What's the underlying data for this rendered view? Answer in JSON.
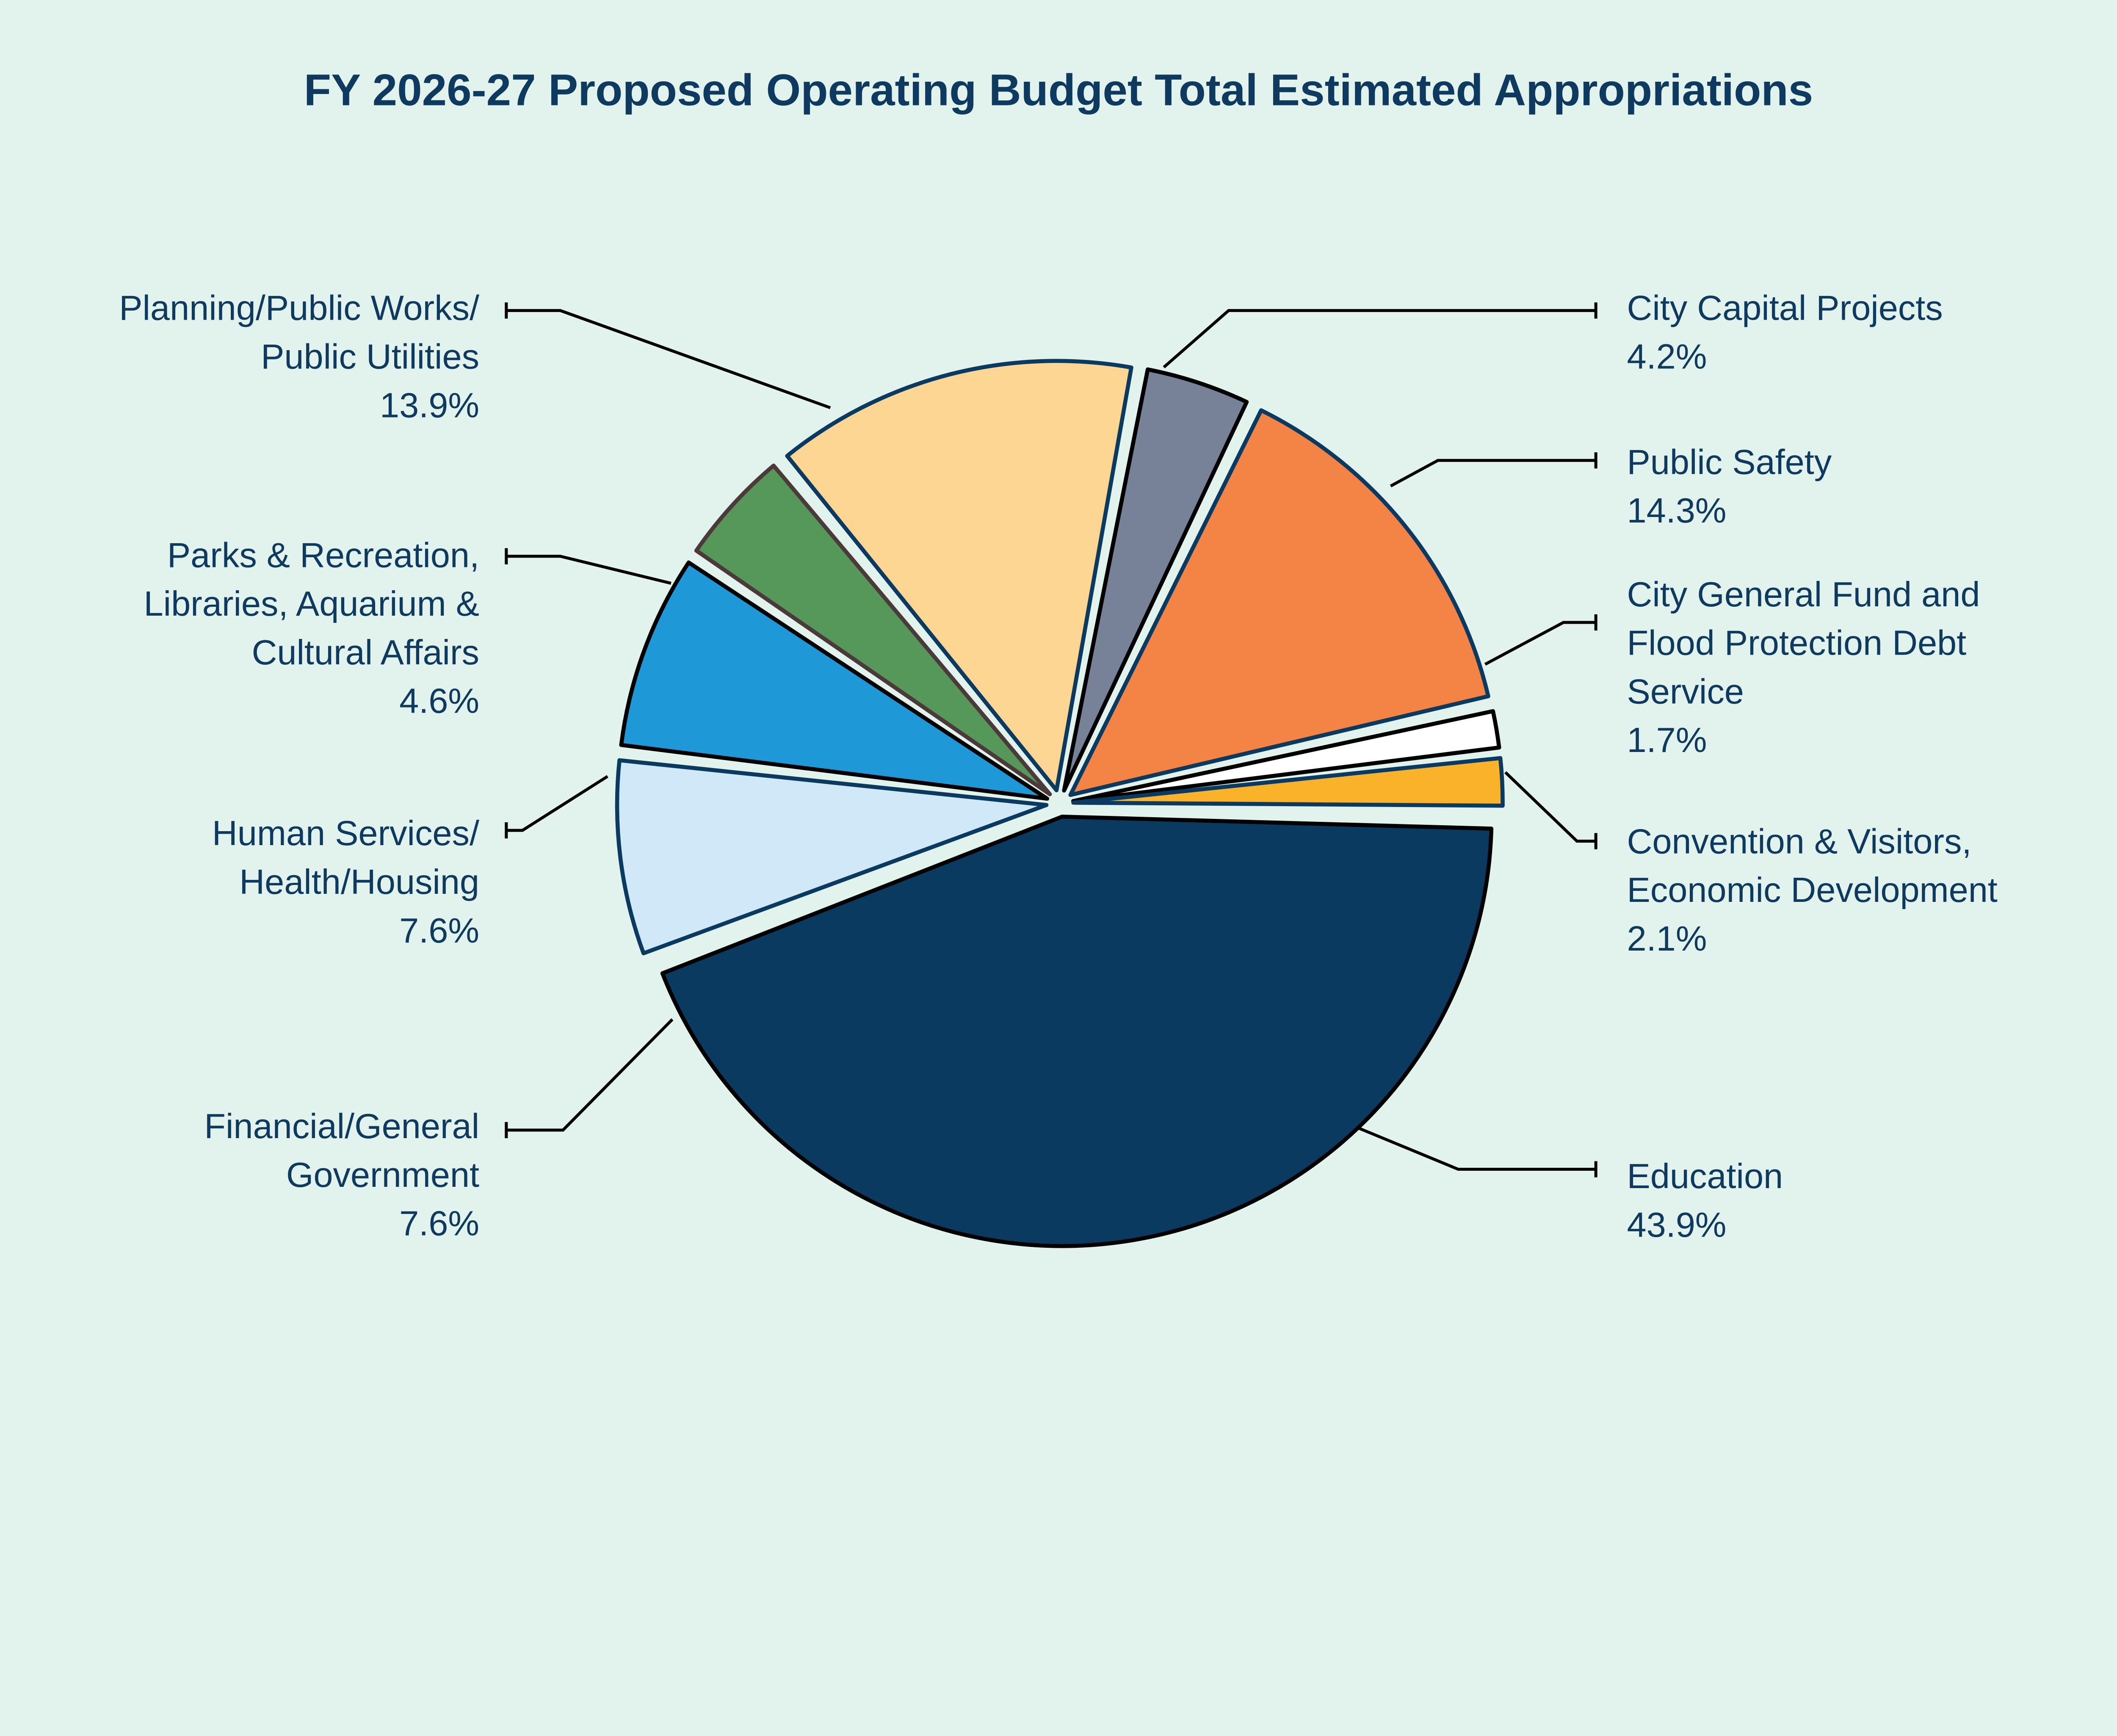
{
  "chart_data": {
    "type": "pie",
    "title": "FY 2026-27 Proposed Operating Budget Total Estimated Appropriations",
    "legend": "none",
    "slices": [
      {
        "label": [
          "Education"
        ],
        "value": 43.9,
        "value_label": "43.9%",
        "color": "#0a3a5f"
      },
      {
        "label": [
          "Financial/General",
          "Government"
        ],
        "value": 7.6,
        "value_label": "7.6%",
        "color": "#d0e8f8"
      },
      {
        "label": [
          "Human Services/",
          "Health/Housing"
        ],
        "value": 7.6,
        "value_label": "7.6%",
        "color": "#1e98d6"
      },
      {
        "label": [
          "Parks & Recreation,",
          "Libraries, Aquarium &",
          "Cultural Affairs"
        ],
        "value": 4.6,
        "value_label": "4.6%",
        "color": "#56975a"
      },
      {
        "label": [
          "Planning/Public Works/",
          "Public Utilities"
        ],
        "value": 13.9,
        "value_label": "13.9%",
        "color": "#fed694"
      },
      {
        "label": [
          "City Capital Projects"
        ],
        "value": 4.2,
        "value_label": "4.2%",
        "color": "#778299"
      },
      {
        "label": [
          "Public Safety"
        ],
        "value": 14.3,
        "value_label": "14.3%",
        "color": "#f48346"
      },
      {
        "label": [
          "City General Fund and",
          "Flood Protection Debt",
          "Service"
        ],
        "value": 1.7,
        "value_label": "1.7%",
        "color": "#ffffff"
      },
      {
        "label": [
          "Convention & Visitors,",
          "Economic Development"
        ],
        "value": 2.1,
        "value_label": "2.1%",
        "color": "#fbb22b"
      }
    ]
  },
  "colors": {
    "background": "#e2f2ec",
    "text": "#0d3a5e",
    "outline": "#0a3a5f"
  }
}
